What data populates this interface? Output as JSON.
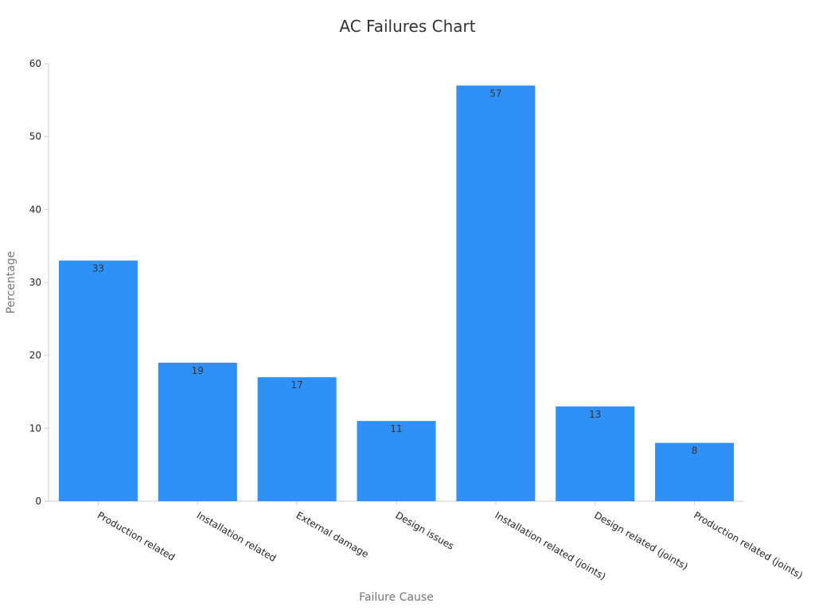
{
  "chart_data": {
    "type": "bar",
    "title": "AC Failures Chart",
    "xlabel": "Failure Cause",
    "ylabel": "Percentage",
    "categories": [
      "Production related",
      "Installation related",
      "External damage",
      "Design issues",
      "Installation related (joints)",
      "Design related (joints)",
      "Production related (joints)"
    ],
    "values": [
      33,
      19,
      17,
      11,
      57,
      13,
      8
    ],
    "ylim": [
      0,
      60
    ],
    "yticks": [
      0,
      10,
      20,
      30,
      40,
      50,
      60
    ],
    "grid": false,
    "legend": "none",
    "data_labels": true,
    "colors": {
      "bar": "#2f91f8",
      "bar_label": "#333333",
      "axis": "#cccccc",
      "title": "#333333",
      "axis_title": "#777777",
      "tick_label": "#222222"
    }
  }
}
